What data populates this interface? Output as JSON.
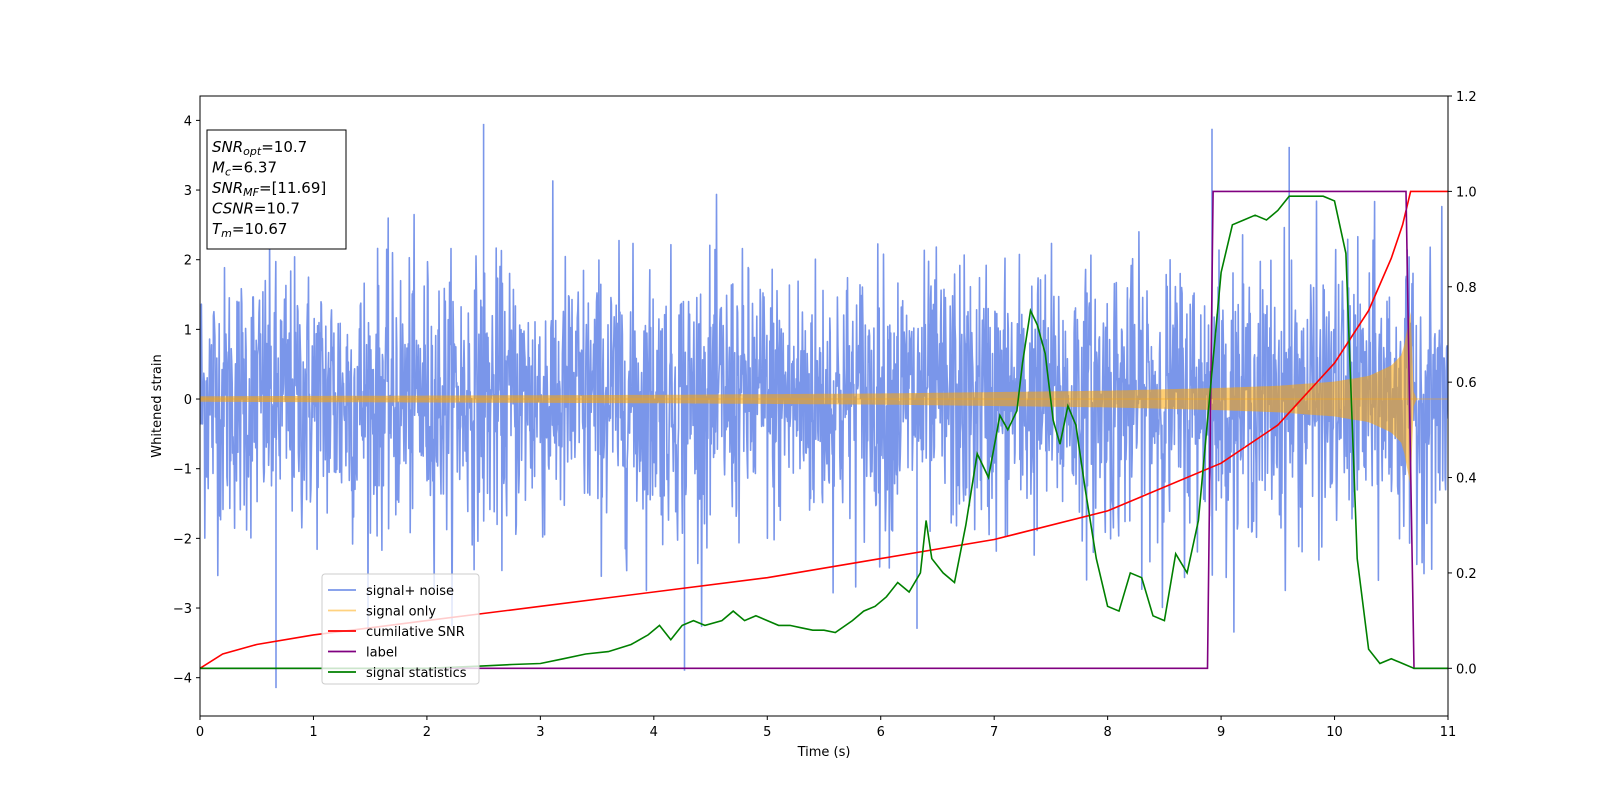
{
  "chart_data": {
    "type": "line",
    "title": "",
    "xlabel": "Time (s)",
    "ylabel": "Whitened strain",
    "xlim": [
      0,
      11
    ],
    "ylim": [
      -4.55,
      4.35
    ],
    "y2lim": [
      -0.1,
      1.2
    ],
    "x_ticks": [
      "0",
      "1",
      "2",
      "3",
      "4",
      "5",
      "6",
      "7",
      "8",
      "9",
      "10",
      "11"
    ],
    "y_ticks": [
      "4",
      "3",
      "2",
      "1",
      "0",
      "−1",
      "−2",
      "−3",
      "−4"
    ],
    "y2_ticks": [
      "1.2",
      "1.0",
      "0.8",
      "0.6",
      "0.4",
      "0.2",
      "0.0"
    ],
    "annotation": [
      {
        "sym": "SNR",
        "sub": "opt",
        "val": "=10.7"
      },
      {
        "sym": "M",
        "sub": "c",
        "val": "=6.37"
      },
      {
        "sym": "SNR",
        "sub": "MF",
        "val": "=[11.69]"
      },
      {
        "sym": "CSNR",
        "sub": "",
        "val": "=10.7"
      },
      {
        "sym": "T",
        "sub": "m",
        "val": "=10.67"
      }
    ],
    "legend": {
      "placement": "lower-left",
      "entries": [
        {
          "label": "signal+ noise",
          "color": "#4169e1"
        },
        {
          "label": "signal only",
          "color": "#ffa500"
        },
        {
          "label": "cumilative SNR",
          "color": "#ff0000"
        },
        {
          "label": "label",
          "color": "#800080"
        },
        {
          "label": "signal statistics",
          "color": "#008000"
        }
      ]
    },
    "series": [
      {
        "name": "signal+ noise",
        "axis": "left",
        "color": "#4169e1",
        "note_values": "dense noise between approx -2.5 and 2.5 with spikes to about 4 and -4.2",
        "envelope": [
          -2.5,
          2.5
        ],
        "spikes": [
          [
            0.67,
            -4.15
          ],
          [
            2.5,
            3.95
          ],
          [
            4.27,
            -3.9
          ],
          [
            8.92,
            3.88
          ],
          [
            6.32,
            -3.3
          ],
          [
            9.6,
            3.62
          ]
        ]
      },
      {
        "name": "signal only",
        "axis": "left",
        "color": "#ffa500",
        "amplitude_envelope": {
          "x": [
            0,
            2,
            4,
            6,
            7,
            8,
            9,
            9.5,
            10,
            10.3,
            10.5,
            10.6,
            10.67,
            10.7,
            11
          ],
          "amp": [
            0.04,
            0.05,
            0.06,
            0.08,
            0.1,
            0.12,
            0.16,
            0.19,
            0.25,
            0.33,
            0.48,
            0.65,
            1.25,
            0.0,
            0.0
          ]
        }
      },
      {
        "name": "cumilative SNR",
        "axis": "right",
        "color": "#ff0000",
        "x": [
          0,
          0.2,
          0.5,
          1,
          2,
          3,
          4,
          5,
          6,
          7,
          8,
          9,
          9.5,
          10,
          10.3,
          10.5,
          10.6,
          10.67,
          10.7,
          11
        ],
        "y": [
          0.0,
          0.03,
          0.05,
          0.07,
          0.1,
          0.13,
          0.16,
          0.19,
          0.23,
          0.27,
          0.33,
          0.43,
          0.51,
          0.64,
          0.75,
          0.86,
          0.93,
          1.0,
          1.0,
          1.0
        ]
      },
      {
        "name": "label",
        "axis": "right",
        "color": "#800080",
        "x": [
          0,
          8.88,
          8.93,
          10.63,
          10.7,
          11
        ],
        "y": [
          0,
          0,
          1,
          1,
          0,
          0
        ]
      },
      {
        "name": "signal statistics",
        "axis": "right",
        "color": "#008000",
        "x": [
          0,
          0.5,
          1,
          1.5,
          2,
          2.5,
          2.75,
          3,
          3.2,
          3.4,
          3.6,
          3.8,
          3.95,
          4.05,
          4.15,
          4.25,
          4.35,
          4.45,
          4.6,
          4.7,
          4.8,
          4.9,
          5.0,
          5.1,
          5.2,
          5.3,
          5.4,
          5.5,
          5.6,
          5.75,
          5.85,
          5.95,
          6.05,
          6.15,
          6.25,
          6.35,
          6.4,
          6.45,
          6.55,
          6.65,
          6.75,
          6.85,
          6.95,
          7.05,
          7.12,
          7.2,
          7.25,
          7.32,
          7.38,
          7.45,
          7.52,
          7.58,
          7.65,
          7.72,
          7.8,
          7.9,
          8.0,
          8.1,
          8.2,
          8.3,
          8.4,
          8.5,
          8.6,
          8.7,
          8.8,
          8.9,
          9.0,
          9.1,
          9.2,
          9.3,
          9.4,
          9.5,
          9.6,
          9.7,
          9.8,
          9.9,
          10.0,
          10.1,
          10.2,
          10.3,
          10.4,
          10.5,
          10.6,
          10.7,
          11
        ],
        "y": [
          0.0,
          0.0,
          0.0,
          0.0,
          0.0,
          0.005,
          0.008,
          0.01,
          0.02,
          0.03,
          0.035,
          0.05,
          0.07,
          0.09,
          0.06,
          0.09,
          0.1,
          0.09,
          0.1,
          0.12,
          0.1,
          0.11,
          0.1,
          0.09,
          0.09,
          0.085,
          0.08,
          0.08,
          0.075,
          0.1,
          0.12,
          0.13,
          0.15,
          0.18,
          0.16,
          0.2,
          0.31,
          0.23,
          0.2,
          0.18,
          0.3,
          0.45,
          0.4,
          0.53,
          0.5,
          0.54,
          0.64,
          0.75,
          0.72,
          0.66,
          0.52,
          0.47,
          0.55,
          0.51,
          0.38,
          0.23,
          0.13,
          0.12,
          0.2,
          0.19,
          0.11,
          0.1,
          0.24,
          0.2,
          0.31,
          0.57,
          0.83,
          0.93,
          0.94,
          0.95,
          0.94,
          0.96,
          0.99,
          0.99,
          0.99,
          0.99,
          0.98,
          0.87,
          0.23,
          0.04,
          0.01,
          0.02,
          0.01,
          0.0,
          0.0
        ]
      }
    ]
  }
}
